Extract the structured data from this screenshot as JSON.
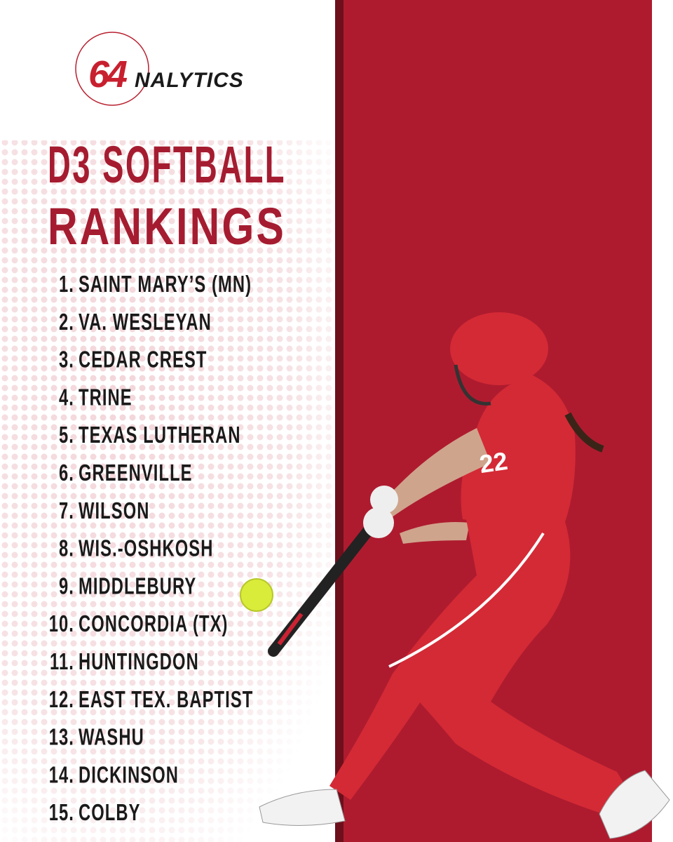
{
  "logo": {
    "number": "64",
    "text": "NALYTICS"
  },
  "title": [
    "D3 SOFTBALL",
    "RANKINGS"
  ],
  "rankings": [
    {
      "rank": "1.",
      "team": "SAINT MARY’S (MN)"
    },
    {
      "rank": "2.",
      "team": "VA. WESLEYAN"
    },
    {
      "rank": "3.",
      "team": "CEDAR CREST"
    },
    {
      "rank": "4.",
      "team": "TRINE"
    },
    {
      "rank": "5.",
      "team": "TEXAS LUTHERAN"
    },
    {
      "rank": "6.",
      "team": "GREENVILLE"
    },
    {
      "rank": "7.",
      "team": "WILSON"
    },
    {
      "rank": "8.",
      "team": "WIS.-OSHKOSH"
    },
    {
      "rank": "9.",
      "team": "MIDDLEBURY"
    },
    {
      "rank": "10.",
      "team": "CONCORDIA (TX)"
    },
    {
      "rank": "11.",
      "team": "HUNTINGDON"
    },
    {
      "rank": "12.",
      "team": "EAST TEX. BAPTIST"
    },
    {
      "rank": "13.",
      "team": "WASHU"
    },
    {
      "rank": "14.",
      "team": "DICKINSON"
    },
    {
      "rank": "15.",
      "team": "COLBY"
    }
  ],
  "player_number": "22"
}
